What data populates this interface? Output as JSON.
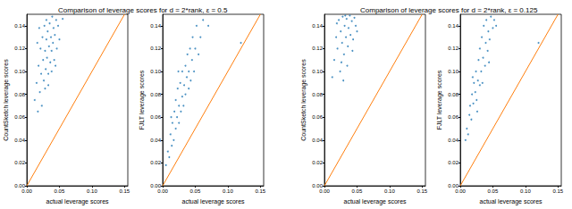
{
  "chart_data": [
    {
      "type": "scatter",
      "title": "Comparison of leverage scores for d = 2*rank, ε = 0.5",
      "xlabel": "actual leverage scores",
      "ylabel": "CountSketch leverage scores",
      "xlim": [
        0,
        0.155
      ],
      "ylim": [
        0,
        0.15
      ],
      "xticks": [
        {
          "value": 0,
          "label": "0.00"
        },
        {
          "value": 0.05,
          "label": "0.05"
        },
        {
          "value": 0.1,
          "label": "0.10"
        },
        {
          "value": 0.15,
          "label": "0.15"
        }
      ],
      "yticks": [
        {
          "value": 0,
          "label": "0.00"
        },
        {
          "value": 0.02,
          "label": "0.02"
        },
        {
          "value": 0.04,
          "label": "0.04"
        },
        {
          "value": 0.06,
          "label": "0.06"
        },
        {
          "value": 0.08,
          "label": "0.08"
        },
        {
          "value": 0.1,
          "label": "0.10"
        },
        {
          "value": 0.12,
          "label": "0.12"
        },
        {
          "value": 0.14,
          "label": "0.14"
        }
      ],
      "series": [
        {
          "type": "scatter",
          "color": "#1f77b4",
          "marker": "circle",
          "values": [
            [
              0.012,
              0.075
            ],
            [
              0.015,
              0.09
            ],
            [
              0.018,
              0.105
            ],
            [
              0.02,
              0.082
            ],
            [
              0.021,
              0.12
            ],
            [
              0.022,
              0.098
            ],
            [
              0.024,
              0.13
            ],
            [
              0.025,
              0.11
            ],
            [
              0.026,
              0.092
            ],
            [
              0.027,
              0.14
            ],
            [
              0.028,
              0.118
            ],
            [
              0.029,
              0.102
            ],
            [
              0.03,
              0.128
            ],
            [
              0.03,
              0.145
            ],
            [
              0.031,
              0.112
            ],
            [
              0.032,
              0.135
            ],
            [
              0.033,
              0.098
            ],
            [
              0.034,
              0.122
            ],
            [
              0.035,
              0.142
            ],
            [
              0.036,
              0.108
            ],
            [
              0.037,
              0.13
            ],
            [
              0.038,
              0.118
            ],
            [
              0.039,
              0.148
            ],
            [
              0.04,
              0.125
            ],
            [
              0.041,
              0.138
            ],
            [
              0.042,
              0.11
            ],
            [
              0.043,
              0.132
            ],
            [
              0.045,
              0.145
            ],
            [
              0.046,
              0.12
            ],
            [
              0.048,
              0.14
            ],
            [
              0.05,
              0.128
            ],
            [
              0.055,
              0.146
            ],
            [
              0.017,
              0.065
            ],
            [
              0.023,
              0.07
            ],
            [
              0.028,
              0.085
            ],
            [
              0.033,
              0.088
            ],
            [
              0.038,
              0.1
            ],
            [
              0.044,
              0.105
            ],
            [
              0.016,
              0.125
            ],
            [
              0.019,
              0.138
            ]
          ]
        },
        {
          "type": "line",
          "color": "#ff7f0e",
          "line_style": "solid",
          "values": [
            [
              0,
              0
            ],
            [
              0.15,
              0.15
            ]
          ]
        }
      ]
    },
    {
      "type": "scatter",
      "xlabel": "actual leverage scores",
      "ylabel": "FJLT leverage scores",
      "xlim": [
        0,
        0.155
      ],
      "ylim": [
        0,
        0.15
      ],
      "xticks": [
        {
          "value": 0,
          "label": "0.00"
        },
        {
          "value": 0.05,
          "label": "0.05"
        },
        {
          "value": 0.1,
          "label": "0.10"
        },
        {
          "value": 0.15,
          "label": "0.15"
        }
      ],
      "yticks": [
        {
          "value": 0,
          "label": "0.00"
        },
        {
          "value": 0.02,
          "label": "0.02"
        },
        {
          "value": 0.04,
          "label": "0.04"
        },
        {
          "value": 0.06,
          "label": "0.06"
        },
        {
          "value": 0.08,
          "label": "0.08"
        },
        {
          "value": 0.1,
          "label": "0.10"
        },
        {
          "value": 0.12,
          "label": "0.12"
        },
        {
          "value": 0.14,
          "label": "0.14"
        }
      ],
      "series": [
        {
          "type": "scatter",
          "color": "#1f77b4",
          "marker": "circle",
          "values": [
            [
              0.005,
              0.018
            ],
            [
              0.008,
              0.03
            ],
            [
              0.01,
              0.025
            ],
            [
              0.012,
              0.045
            ],
            [
              0.014,
              0.035
            ],
            [
              0.015,
              0.055
            ],
            [
              0.017,
              0.04
            ],
            [
              0.018,
              0.065
            ],
            [
              0.02,
              0.05
            ],
            [
              0.02,
              0.075
            ],
            [
              0.022,
              0.06
            ],
            [
              0.023,
              0.085
            ],
            [
              0.025,
              0.055
            ],
            [
              0.025,
              0.07
            ],
            [
              0.027,
              0.09
            ],
            [
              0.028,
              0.065
            ],
            [
              0.03,
              0.078
            ],
            [
              0.03,
              0.1
            ],
            [
              0.032,
              0.07
            ],
            [
              0.033,
              0.088
            ],
            [
              0.035,
              0.105
            ],
            [
              0.035,
              0.08
            ],
            [
              0.037,
              0.095
            ],
            [
              0.038,
              0.115
            ],
            [
              0.04,
              0.085
            ],
            [
              0.04,
              0.1
            ],
            [
              0.042,
              0.12
            ],
            [
              0.043,
              0.092
            ],
            [
              0.045,
              0.11
            ],
            [
              0.046,
              0.13
            ],
            [
              0.048,
              0.1
            ],
            [
              0.05,
              0.12
            ],
            [
              0.052,
              0.14
            ],
            [
              0.055,
              0.115
            ],
            [
              0.058,
              0.13
            ],
            [
              0.062,
              0.145
            ],
            [
              0.07,
              0.14
            ],
            [
              0.12,
              0.125
            ],
            [
              0.013,
              0.06
            ],
            [
              0.024,
              0.1
            ]
          ]
        },
        {
          "type": "line",
          "color": "#ff7f0e",
          "line_style": "solid",
          "values": [
            [
              0,
              0
            ],
            [
              0.15,
              0.15
            ]
          ]
        }
      ]
    },
    {
      "type": "scatter",
      "title": "Comparison of leverage scores for d = 2*rank, ε = 0.125",
      "xlabel": "actual leverage scores",
      "ylabel": "CountSketch leverage scores",
      "xlim": [
        0,
        0.155
      ],
      "ylim": [
        0,
        0.15
      ],
      "xticks": [
        {
          "value": 0,
          "label": "0.00"
        },
        {
          "value": 0.05,
          "label": "0.05"
        },
        {
          "value": 0.1,
          "label": "0.10"
        },
        {
          "value": 0.15,
          "label": "0.15"
        }
      ],
      "yticks": [
        {
          "value": 0,
          "label": "0.00"
        },
        {
          "value": 0.02,
          "label": "0.02"
        },
        {
          "value": 0.04,
          "label": "0.04"
        },
        {
          "value": 0.06,
          "label": "0.06"
        },
        {
          "value": 0.08,
          "label": "0.08"
        },
        {
          "value": 0.1,
          "label": "0.10"
        },
        {
          "value": 0.12,
          "label": "0.12"
        },
        {
          "value": 0.14,
          "label": "0.14"
        }
      ],
      "series": [
        {
          "type": "scatter",
          "color": "#1f77b4",
          "marker": "circle",
          "values": [
            [
              0.015,
              0.11
            ],
            [
              0.018,
              0.13
            ],
            [
              0.02,
              0.12
            ],
            [
              0.022,
              0.145
            ],
            [
              0.024,
              0.1
            ],
            [
              0.025,
              0.135
            ],
            [
              0.027,
              0.125
            ],
            [
              0.028,
              0.148
            ],
            [
              0.03,
              0.115
            ],
            [
              0.031,
              0.14
            ],
            [
              0.033,
              0.13
            ],
            [
              0.034,
              0.146
            ],
            [
              0.036,
              0.122
            ],
            [
              0.037,
              0.138
            ],
            [
              0.039,
              0.149
            ],
            [
              0.04,
              0.132
            ],
            [
              0.042,
              0.144
            ],
            [
              0.044,
              0.128
            ],
            [
              0.046,
              0.147
            ],
            [
              0.048,
              0.14
            ],
            [
              0.05,
              0.135
            ],
            [
              0.012,
              0.095
            ],
            [
              0.026,
              0.108
            ],
            [
              0.035,
              0.105
            ],
            [
              0.029,
              0.092
            ],
            [
              0.043,
              0.118
            ],
            [
              0.019,
              0.142
            ],
            [
              0.032,
              0.149
            ]
          ]
        },
        {
          "type": "line",
          "color": "#ff7f0e",
          "line_style": "solid",
          "values": [
            [
              0,
              0
            ],
            [
              0.15,
              0.15
            ]
          ]
        }
      ]
    },
    {
      "type": "scatter",
      "xlabel": "actual leverage scores",
      "ylabel": "FJLT leverage scores",
      "xlim": [
        0,
        0.155
      ],
      "ylim": [
        0,
        0.15
      ],
      "xticks": [
        {
          "value": 0,
          "label": "0.00"
        },
        {
          "value": 0.05,
          "label": "0.05"
        },
        {
          "value": 0.1,
          "label": "0.10"
        },
        {
          "value": 0.15,
          "label": "0.15"
        }
      ],
      "yticks": [
        {
          "value": 0,
          "label": "0.00"
        },
        {
          "value": 0.02,
          "label": "0.02"
        },
        {
          "value": 0.04,
          "label": "0.04"
        },
        {
          "value": 0.06,
          "label": "0.06"
        },
        {
          "value": 0.08,
          "label": "0.08"
        },
        {
          "value": 0.1,
          "label": "0.10"
        },
        {
          "value": 0.12,
          "label": "0.12"
        },
        {
          "value": 0.14,
          "label": "0.14"
        }
      ],
      "series": [
        {
          "type": "scatter",
          "color": "#1f77b4",
          "marker": "circle",
          "values": [
            [
              0.008,
              0.04
            ],
            [
              0.01,
              0.05
            ],
            [
              0.012,
              0.045
            ],
            [
              0.014,
              0.062
            ],
            [
              0.015,
              0.07
            ],
            [
              0.017,
              0.058
            ],
            [
              0.018,
              0.08
            ],
            [
              0.02,
              0.072
            ],
            [
              0.021,
              0.09
            ],
            [
              0.023,
              0.082
            ],
            [
              0.024,
              0.1
            ],
            [
              0.025,
              0.075
            ],
            [
              0.027,
              0.092
            ],
            [
              0.028,
              0.11
            ],
            [
              0.03,
              0.088
            ],
            [
              0.03,
              0.12
            ],
            [
              0.032,
              0.1
            ],
            [
              0.033,
              0.13
            ],
            [
              0.035,
              0.112
            ],
            [
              0.036,
              0.14
            ],
            [
              0.038,
              0.105
            ],
            [
              0.039,
              0.125
            ],
            [
              0.04,
              0.145
            ],
            [
              0.042,
              0.118
            ],
            [
              0.043,
              0.135
            ],
            [
              0.045,
              0.128
            ],
            [
              0.047,
              0.148
            ],
            [
              0.05,
              0.138
            ],
            [
              0.052,
              0.145
            ],
            [
              0.055,
              0.14
            ],
            [
              0.12,
              0.125
            ],
            [
              0.019,
              0.095
            ],
            [
              0.026,
              0.065
            ],
            [
              0.034,
              0.09
            ],
            [
              0.044,
              0.108
            ]
          ]
        },
        {
          "type": "line",
          "color": "#ff7f0e",
          "line_style": "solid",
          "values": [
            [
              0,
              0
            ],
            [
              0.15,
              0.15
            ]
          ]
        }
      ]
    }
  ]
}
